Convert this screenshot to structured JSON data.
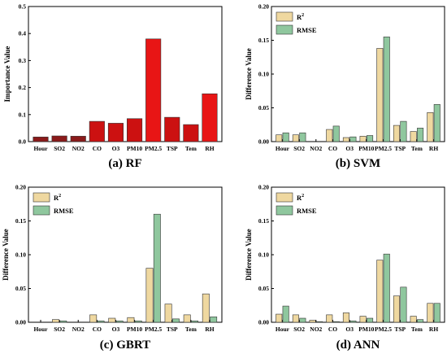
{
  "chart_data": [
    {
      "type": "bar",
      "caption": "(a) RF",
      "ylabel": "Importance Value",
      "ylim": [
        0,
        0.5
      ],
      "yticks": [
        "0.0",
        "0.1",
        "0.2",
        "0.3",
        "0.4",
        "0.5"
      ],
      "categories": [
        "Hour",
        "SO2",
        "NO2",
        "CO",
        "O3",
        "PM10",
        "PM2.5",
        "TSP",
        "Tem",
        "RH"
      ],
      "series": [
        {
          "values": [
            0.017,
            0.021,
            0.02,
            0.075,
            0.068,
            0.085,
            0.38,
            0.09,
            0.063,
            0.177
          ],
          "colors": [
            "#8b1a1a",
            "#8b1a1a",
            "#8b1a1a",
            "#cc1111",
            "#cc1111",
            "#cc1111",
            "#e81515",
            "#cc1111",
            "#cc1111",
            "#e81515"
          ]
        }
      ],
      "legend": null
    },
    {
      "type": "bar",
      "caption": "(b) SVM",
      "ylabel": "Difference Value",
      "ylim": [
        0,
        0.2
      ],
      "yticks": [
        "0.00",
        "0.05",
        "0.10",
        "0.15",
        "0.20"
      ],
      "categories": [
        "Hour",
        "SO2",
        "NO2",
        "CO",
        "O3",
        "PM10",
        "PM2.5",
        "TSP",
        "Tem",
        "RH"
      ],
      "legend": "top-left",
      "series": [
        {
          "name": "R²",
          "color": "#efd8a0",
          "values": [
            0.01,
            0.01,
            0.0,
            0.018,
            0.006,
            0.008,
            0.138,
            0.024,
            0.015,
            0.043
          ]
        },
        {
          "name": "RMSE",
          "color": "#8fc79e",
          "values": [
            0.013,
            0.013,
            0.0,
            0.023,
            0.007,
            0.009,
            0.155,
            0.03,
            0.02,
            0.055
          ]
        }
      ]
    },
    {
      "type": "bar",
      "caption": "(c) GBRT",
      "ylabel": "Difference Value",
      "ylim": [
        0,
        0.2
      ],
      "yticks": [
        "0.00",
        "0.05",
        "0.10",
        "0.15",
        "0.20"
      ],
      "categories": [
        "Hour",
        "SO2",
        "NO2",
        "CO",
        "O3",
        "PM10",
        "PM2.5",
        "TSP",
        "Tem",
        "RH"
      ],
      "legend": "top-left",
      "series": [
        {
          "name": "R²",
          "color": "#efd8a0",
          "values": [
            0.0,
            0.004,
            0.0,
            0.011,
            0.006,
            0.007,
            0.08,
            0.027,
            0.011,
            0.042
          ]
        },
        {
          "name": "RMSE",
          "color": "#8fc79e",
          "values": [
            0.0,
            0.002,
            0.0,
            0.002,
            0.002,
            0.002,
            0.16,
            0.005,
            0.002,
            0.008
          ]
        }
      ]
    },
    {
      "type": "bar",
      "caption": "(d) ANN",
      "ylabel": "Difference Value",
      "ylim": [
        0,
        0.2
      ],
      "yticks": [
        "0.00",
        "0.05",
        "0.10",
        "0.15",
        "0.20"
      ],
      "categories": [
        "Hour",
        "SO2",
        "NO2",
        "CO",
        "O3",
        "PM10",
        "PM2.5",
        "TSP",
        "Tem",
        "RH"
      ],
      "legend": "top-left",
      "series": [
        {
          "name": "R²",
          "color": "#efd8a0",
          "values": [
            0.012,
            0.011,
            0.003,
            0.011,
            0.014,
            0.009,
            0.092,
            0.039,
            0.009,
            0.028
          ]
        },
        {
          "name": "RMSE",
          "color": "#8fc79e",
          "values": [
            0.024,
            0.006,
            0.001,
            0.001,
            0.002,
            0.006,
            0.101,
            0.052,
            0.004,
            0.028
          ]
        }
      ]
    }
  ]
}
